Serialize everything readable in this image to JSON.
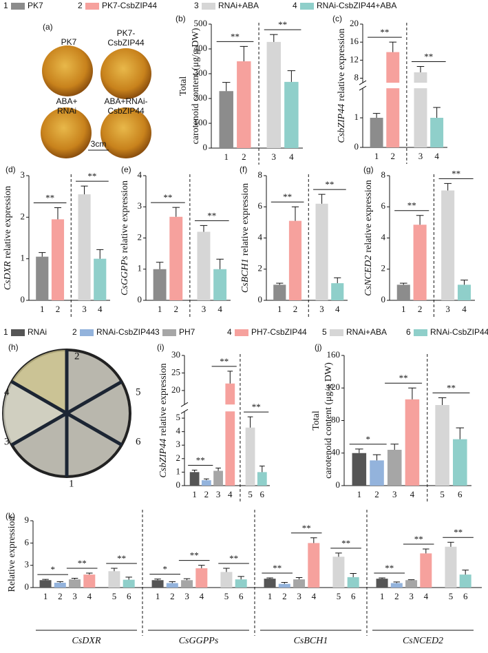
{
  "legend_top": {
    "items": [
      {
        "number": "1",
        "name": "PK7",
        "color": "#8c8c8c"
      },
      {
        "number": "2",
        "name": "PK7-CsbZIP44",
        "color": "#f6a19d"
      },
      {
        "number": "3",
        "name": "RNAi+ABA",
        "color": "#d6d6d6"
      },
      {
        "number": "4",
        "name": "RNAi-CsbZIP44+ABA",
        "color": "#8fcfca"
      }
    ]
  },
  "legend_bottom": {
    "items": [
      {
        "number": "1",
        "name": "RNAi",
        "color": "#555555"
      },
      {
        "number": "2",
        "name": "RNAi-CsbZIP44",
        "color": "#93b3dc"
      },
      {
        "number": "3",
        "name": "PH7",
        "color": "#a6a6a6"
      },
      {
        "number": "4",
        "name": "PH7-CsbZIP44",
        "color": "#f6a19d"
      },
      {
        "number": "5",
        "name": "RNAi+ABA",
        "color": "#d6d6d6"
      },
      {
        "number": "6",
        "name": "RNAi-CsbZIP44+ABA",
        "color": "#8fcfca"
      }
    ]
  },
  "photo_a": {
    "panel": "(a)",
    "labels": [
      [
        "PK7"
      ],
      [
        "PK7-",
        "CsbZIP44"
      ],
      [
        "ABA+",
        "RNAi"
      ],
      [
        "ABA+RNAi-",
        "CsbZIP44"
      ]
    ],
    "scale": "3cm"
  },
  "photo_h": {
    "panel": "(h)",
    "labels": [
      "1",
      "2",
      "3",
      "4",
      "5",
      "6"
    ]
  },
  "chart_data": [
    {
      "type": "bar",
      "panel": "(b)",
      "ylabel": [
        "Total",
        "carotenoid content (μg/g DW)"
      ],
      "categories": [
        "1",
        "2",
        "3",
        "4"
      ],
      "values": [
        230,
        350,
        428,
        267
      ],
      "errors": [
        35,
        60,
        30,
        45
      ],
      "colors": [
        "#8c8c8c",
        "#f6a19d",
        "#d6d6d6",
        "#8fcfca"
      ],
      "ylim": [
        0,
        500
      ],
      "yticks": [
        0,
        100,
        200,
        300,
        400,
        500
      ],
      "divider_after": "2",
      "significance": [
        {
          "label": "**",
          "between": [
            "1",
            "2"
          ]
        },
        {
          "label": "**",
          "between": [
            "3",
            "4"
          ]
        }
      ]
    },
    {
      "type": "bar",
      "panel": "(c)",
      "gene": "CsbZIP44",
      "ylabel": "relative expression",
      "categories": [
        "1",
        "2",
        "3",
        "4"
      ],
      "values": [
        1.0,
        13.8,
        9.3,
        1.0
      ],
      "errors": [
        0.15,
        2.2,
        1.3,
        0.35
      ],
      "colors": [
        "#8c8c8c",
        "#f6a19d",
        "#d6d6d6",
        "#8fcfca"
      ],
      "ylim": [
        0,
        20
      ],
      "ybreak": [
        2,
        7
      ],
      "yticks": [
        0,
        1,
        8,
        12,
        16,
        20
      ],
      "divider_after": "2",
      "significance": [
        {
          "label": "**",
          "between": [
            "1",
            "2"
          ]
        },
        {
          "label": "**",
          "between": [
            "3",
            "4"
          ]
        }
      ]
    },
    {
      "type": "bar",
      "panel": "(d)",
      "gene": "CsDXR",
      "ylabel": "relative expression",
      "categories": [
        "1",
        "2",
        "3",
        "4"
      ],
      "values": [
        1.05,
        1.95,
        2.55,
        1.0
      ],
      "errors": [
        0.1,
        0.28,
        0.2,
        0.22
      ],
      "colors": [
        "#8c8c8c",
        "#f6a19d",
        "#d6d6d6",
        "#8fcfca"
      ],
      "ylim": [
        0,
        3
      ],
      "yticks": [
        0,
        1,
        2,
        3
      ],
      "divider_after": "2",
      "significance": [
        {
          "label": "**",
          "between": [
            "1",
            "2"
          ]
        },
        {
          "label": "**",
          "between": [
            "3",
            "4"
          ]
        }
      ]
    },
    {
      "type": "bar",
      "panel": "(e)",
      "gene": "CsGGPPs",
      "ylabel": "relative expression",
      "categories": [
        "1",
        "2",
        "3",
        "4"
      ],
      "values": [
        1.0,
        2.68,
        2.2,
        1.0
      ],
      "errors": [
        0.22,
        0.3,
        0.2,
        0.32
      ],
      "colors": [
        "#8c8c8c",
        "#f6a19d",
        "#d6d6d6",
        "#8fcfca"
      ],
      "ylim": [
        0,
        4
      ],
      "yticks": [
        0,
        1,
        2,
        3,
        4
      ],
      "divider_after": "2",
      "significance": [
        {
          "label": "**",
          "between": [
            "1",
            "2"
          ]
        },
        {
          "label": "**",
          "between": [
            "3",
            "4"
          ]
        }
      ]
    },
    {
      "type": "bar",
      "panel": "(f)",
      "gene": "CsBCH1",
      "ylabel": "relative expression",
      "categories": [
        "1",
        "2",
        "3",
        "4"
      ],
      "values": [
        1.0,
        5.1,
        6.2,
        1.1
      ],
      "errors": [
        0.1,
        0.9,
        0.6,
        0.35
      ],
      "colors": [
        "#8c8c8c",
        "#f6a19d",
        "#d6d6d6",
        "#8fcfca"
      ],
      "ylim": [
        0,
        8
      ],
      "yticks": [
        0,
        2,
        4,
        6,
        8
      ],
      "divider_after": "2",
      "significance": [
        {
          "label": "**",
          "between": [
            "1",
            "2"
          ]
        },
        {
          "label": "**",
          "between": [
            "3",
            "4"
          ]
        }
      ]
    },
    {
      "type": "bar",
      "panel": "(g)",
      "gene": "CsNCED2",
      "ylabel": "relative expression",
      "categories": [
        "1",
        "2",
        "3",
        "4"
      ],
      "values": [
        1.0,
        4.85,
        7.05,
        1.0
      ],
      "errors": [
        0.1,
        0.6,
        0.45,
        0.3
      ],
      "colors": [
        "#8c8c8c",
        "#f6a19d",
        "#d6d6d6",
        "#8fcfca"
      ],
      "ylim": [
        0,
        8
      ],
      "yticks": [
        0,
        2,
        4,
        6,
        8
      ],
      "divider_after": "2",
      "significance": [
        {
          "label": "**",
          "between": [
            "1",
            "2"
          ]
        },
        {
          "label": "**",
          "between": [
            "3",
            "4"
          ]
        }
      ]
    },
    {
      "type": "bar",
      "panel": "(i)",
      "gene": "CsbZIP44",
      "ylabel": "relative expression",
      "categories": [
        "1",
        "2",
        "3",
        "4",
        "5",
        "6"
      ],
      "values": [
        1.0,
        0.4,
        1.1,
        22,
        4.3,
        1.0
      ],
      "errors": [
        0.15,
        0.1,
        0.2,
        3.5,
        0.8,
        0.45
      ],
      "colors": [
        "#555555",
        "#93b3dc",
        "#a6a6a6",
        "#f6a19d",
        "#d6d6d6",
        "#8fcfca"
      ],
      "ylim": [
        0,
        30
      ],
      "ybreak": [
        5.5,
        16
      ],
      "yticks": [
        0,
        1,
        2,
        3,
        4,
        5,
        20,
        25,
        30
      ],
      "divider_after": "4",
      "significance": [
        {
          "label": "**",
          "between": [
            "1",
            "2"
          ]
        },
        {
          "label": "**",
          "between": [
            "3",
            "4"
          ]
        },
        {
          "label": "**",
          "between": [
            "5",
            "6"
          ]
        }
      ]
    },
    {
      "type": "bar",
      "panel": "(j)",
      "ylabel": [
        "Total",
        "carotenoid content (μg/g DW)"
      ],
      "categories": [
        "1",
        "2",
        "3",
        "4",
        "5",
        "6"
      ],
      "values": [
        40,
        31,
        44,
        106,
        99,
        57
      ],
      "errors": [
        5,
        7,
        7,
        14,
        9,
        14
      ],
      "colors": [
        "#555555",
        "#93b3dc",
        "#a6a6a6",
        "#f6a19d",
        "#d6d6d6",
        "#8fcfca"
      ],
      "ylim": [
        0,
        160
      ],
      "yticks": [
        0,
        40,
        80,
        120,
        160
      ],
      "divider_after": "4",
      "significance": [
        {
          "label": "*",
          "between": [
            "1",
            "2"
          ]
        },
        {
          "label": "**",
          "between": [
            "3",
            "4"
          ]
        },
        {
          "label": "**",
          "between": [
            "5",
            "6"
          ]
        }
      ]
    },
    {
      "type": "grouped-bar",
      "panel": "(k)",
      "ylabel": "Relative expression",
      "categories": [
        "1",
        "2",
        "3",
        "4",
        "5",
        "6"
      ],
      "colors": [
        "#555555",
        "#93b3dc",
        "#a6a6a6",
        "#f6a19d",
        "#d6d6d6",
        "#8fcfca"
      ],
      "ylim": [
        0,
        9
      ],
      "yticks": [
        0,
        3,
        6,
        9
      ],
      "divider_after": "4",
      "groups": [
        {
          "name": "CsDXR",
          "values": [
            1.0,
            0.65,
            1.1,
            1.75,
            2.2,
            1.05
          ],
          "errors": [
            0.1,
            0.15,
            0.15,
            0.2,
            0.4,
            0.35
          ],
          "significance": [
            {
              "label": "*",
              "between": [
                "1",
                "2"
              ]
            },
            {
              "label": "**",
              "between": [
                "3",
                "4"
              ]
            },
            {
              "label": "**",
              "between": [
                "5",
                "6"
              ]
            }
          ]
        },
        {
          "name": "CsGGPPs",
          "values": [
            1.0,
            0.6,
            1.0,
            2.6,
            2.1,
            1.1
          ],
          "errors": [
            0.15,
            0.2,
            0.2,
            0.4,
            0.5,
            0.4
          ],
          "significance": [
            {
              "label": "*",
              "between": [
                "1",
                "2"
              ]
            },
            {
              "label": "**",
              "between": [
                "3",
                "4"
              ]
            },
            {
              "label": "**",
              "between": [
                "5",
                "6"
              ]
            }
          ]
        },
        {
          "name": "CsBCH1",
          "values": [
            1.2,
            0.5,
            1.1,
            6.0,
            4.15,
            1.4
          ],
          "errors": [
            0.1,
            0.2,
            0.25,
            0.7,
            0.5,
            0.5
          ],
          "significance": [
            {
              "label": "**",
              "between": [
                "1",
                "2"
              ]
            },
            {
              "label": "**",
              "between": [
                "3",
                "4"
              ]
            },
            {
              "label": "**",
              "between": [
                "5",
                "6"
              ]
            }
          ]
        },
        {
          "name": "CsNCED2",
          "values": [
            1.2,
            0.6,
            1.0,
            4.6,
            5.5,
            1.75
          ],
          "errors": [
            0.1,
            0.15,
            0.05,
            0.6,
            0.6,
            0.6
          ],
          "significance": [
            {
              "label": "**",
              "between": [
                "1",
                "2"
              ]
            },
            {
              "label": "**",
              "between": [
                "3",
                "4"
              ]
            },
            {
              "label": "**",
              "between": [
                "5",
                "6"
              ]
            }
          ]
        }
      ]
    }
  ]
}
